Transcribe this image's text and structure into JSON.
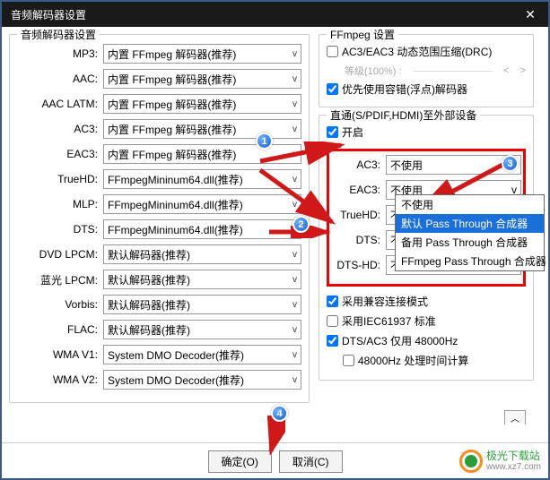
{
  "title": "音频解码器设置",
  "left": {
    "fieldset_title": "音频解码器设置",
    "codecs": [
      {
        "label": "MP3:",
        "value": "内置 FFmpeg 解码器(推荐)"
      },
      {
        "label": "AAC:",
        "value": "内置 FFmpeg 解码器(推荐)"
      },
      {
        "label": "AAC LATM:",
        "value": "内置 FFmpeg 解码器(推荐)"
      },
      {
        "label": "AC3:",
        "value": "内置 FFmpeg 解码器(推荐)"
      },
      {
        "label": "EAC3:",
        "value": "内置 FFmpeg 解码器(推荐)"
      },
      {
        "label": "TrueHD:",
        "value": "FFmpegMininum64.dll(推荐)"
      },
      {
        "label": "MLP:",
        "value": "FFmpegMininum64.dll(推荐)"
      },
      {
        "label": "DTS:",
        "value": "FFmpegMininum64.dll(推荐)"
      },
      {
        "label": "DVD LPCM:",
        "value": "默认解码器(推荐)"
      },
      {
        "label": "蓝光 LPCM:",
        "value": "默认解码器(推荐)"
      },
      {
        "label": "Vorbis:",
        "value": "默认解码器(推荐)"
      },
      {
        "label": "FLAC:",
        "value": "默认解码器(推荐)"
      },
      {
        "label": "WMA V1:",
        "value": "System DMO Decoder(推荐)"
      },
      {
        "label": "WMA V2:",
        "value": "System DMO Decoder(推荐)"
      }
    ]
  },
  "right": {
    "ffmpeg_title": "FFmpeg 设置",
    "drc_label": "AC3/EAC3 动态范围压缩(DRC)",
    "drc_level": "等级(100%) :",
    "float_decoder": "优先使用容错(浮点)解码器",
    "passthrough_title": "直通(S/PDIF,HDMI)至外部设备",
    "enable_label": "开启",
    "pt_items": [
      {
        "label": "AC3:",
        "value": "不使用"
      },
      {
        "label": "EAC3:",
        "value": "不使用"
      },
      {
        "label": "TrueHD:",
        "value": "不使用"
      },
      {
        "label": "DTS:",
        "value": "不使用"
      },
      {
        "label": "DTS-HD:",
        "value": "不使用"
      }
    ],
    "dropdown_options": [
      "不使用",
      "默认 Pass Through 合成器",
      "备用 Pass Through 合成器",
      "FFmpeg Pass Through 合成器"
    ],
    "compat_label": "采用兼容连接模式",
    "iec_label": "采用IEC61937 标准",
    "dtsac3_label": "DTS/AC3 仅用 48000Hz",
    "calc_label": "48000Hz 处理时间计算"
  },
  "buttons": {
    "ok": "确定(O)",
    "cancel": "取消(C)"
  },
  "logo": {
    "text1": "极光下载站",
    "text2": "www.xz7.com"
  },
  "colors": {
    "red": "#e00000",
    "blue_badge": "#1a5fd0",
    "arrow": "#d01818",
    "highlight": "#1a6fd8"
  }
}
